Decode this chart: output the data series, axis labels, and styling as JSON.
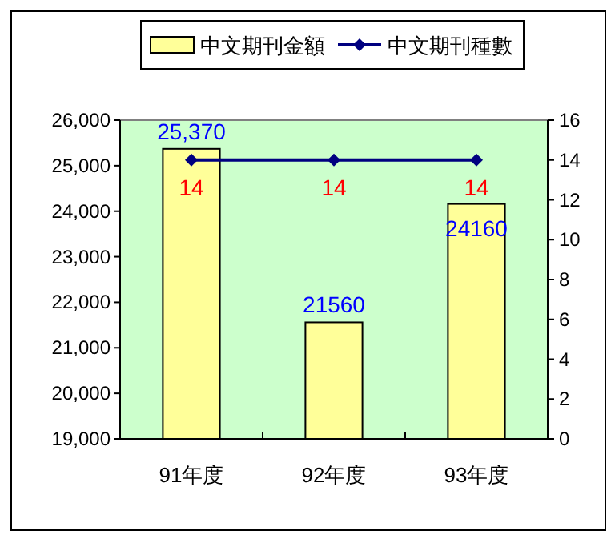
{
  "chart_data": {
    "type": "bar",
    "categories": [
      "91年度",
      "92年度",
      "93年度"
    ],
    "series": [
      {
        "name": "中文期刊金額",
        "color": "#ffff99",
        "values": [
          25370,
          21560,
          24160
        ],
        "value_labels": [
          "25,370",
          "21560",
          "24160"
        ]
      },
      {
        "name": "中文期刊種數",
        "type": "line",
        "axis": "y2",
        "color": "#000080",
        "values": [
          14,
          14,
          14
        ],
        "marker": "diamond",
        "value_labels": [
          "14",
          "14",
          "14"
        ]
      }
    ],
    "ylim": [
      19000,
      26000
    ],
    "yticks": [
      {
        "value": 19000,
        "label": "19,000"
      },
      {
        "value": 20000,
        "label": "20,000"
      },
      {
        "value": 21000,
        "label": "21,000"
      },
      {
        "value": 22000,
        "label": "22,000"
      },
      {
        "value": 23000,
        "label": "23,000"
      },
      {
        "value": 24000,
        "label": "24,000"
      },
      {
        "value": 25000,
        "label": "25,000"
      },
      {
        "value": 26000,
        "label": "26,000"
      }
    ],
    "y2lim": [
      0,
      16
    ],
    "y2ticks": [
      0,
      2,
      4,
      6,
      8,
      10,
      12,
      14,
      16
    ],
    "legend": "top",
    "grid": false
  }
}
